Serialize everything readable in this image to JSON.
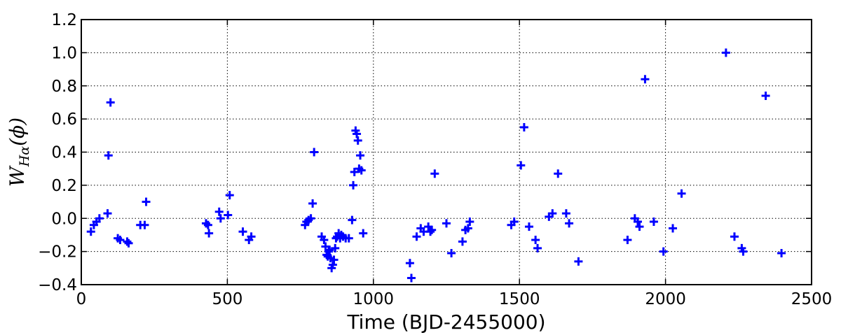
{
  "chart_data": {
    "type": "scatter",
    "title": "",
    "xlabel": "Time (BJD-2455000)",
    "ylabel": {
      "main": "W",
      "subscript": "Hα",
      "suffix": "(ϕ)"
    },
    "xlim": [
      0,
      2500
    ],
    "ylim": [
      -0.4,
      1.2
    ],
    "xticks": [
      0,
      500,
      1000,
      1500,
      2000,
      2500
    ],
    "xtick_labels": [
      "0",
      "500",
      "1000",
      "1500",
      "2000",
      "2500"
    ],
    "yticks": [
      -0.4,
      -0.2,
      0.0,
      0.2,
      0.4,
      0.6,
      0.8,
      1.0,
      1.2
    ],
    "ytick_labels": [
      "−0.4",
      "−0.2",
      "0.0",
      "0.2",
      "0.4",
      "0.6",
      "0.8",
      "1.0",
      "1.2"
    ],
    "grid": true,
    "marker": "plus",
    "color": "#0000ff",
    "series": [
      {
        "x": [
          33,
          43,
          52,
          62,
          90,
          93,
          100,
          125,
          133,
          157,
          162,
          202,
          217,
          222,
          427,
          434,
          437,
          472,
          477,
          502,
          508,
          553,
          574,
          582,
          766,
          771,
          778,
          786,
          792,
          797,
          823,
          831,
          836,
          840,
          844,
          847,
          850,
          853,
          857,
          861,
          865,
          869,
          872,
          876,
          881,
          886,
          890,
          896,
          905,
          916,
          927,
          931,
          935,
          939,
          943,
          947,
          951,
          955,
          959,
          965,
          1125,
          1130,
          1148,
          1162,
          1172,
          1188,
          1195,
          1200,
          1210,
          1250,
          1267,
          1305,
          1315,
          1324,
          1330,
          1472,
          1482,
          1505,
          1516,
          1533,
          1555,
          1562,
          1601,
          1613,
          1632,
          1660,
          1670,
          1702,
          1870,
          1895,
          1905,
          1911,
          1930,
          1960,
          1993,
          2025,
          2055,
          2207,
          2236,
          2261,
          2266,
          2343,
          2397
        ],
        "y": [
          -0.08,
          -0.04,
          -0.02,
          0.0,
          0.03,
          0.38,
          0.7,
          -0.12,
          -0.13,
          -0.14,
          -0.15,
          -0.04,
          -0.04,
          0.1,
          -0.03,
          -0.04,
          -0.09,
          0.04,
          0.0,
          0.02,
          0.14,
          -0.08,
          -0.13,
          -0.11,
          -0.04,
          -0.02,
          -0.01,
          0.0,
          0.09,
          0.4,
          -0.11,
          -0.13,
          -0.17,
          -0.22,
          -0.23,
          -0.2,
          -0.19,
          -0.24,
          -0.3,
          -0.28,
          -0.25,
          -0.18,
          -0.12,
          -0.11,
          -0.09,
          -0.12,
          -0.1,
          -0.11,
          -0.12,
          -0.12,
          -0.01,
          0.2,
          0.28,
          0.53,
          0.51,
          0.47,
          0.3,
          0.38,
          0.29,
          -0.09,
          -0.27,
          -0.36,
          -0.11,
          -0.06,
          -0.08,
          -0.05,
          -0.08,
          -0.07,
          0.27,
          -0.03,
          -0.21,
          -0.14,
          -0.07,
          -0.06,
          -0.02,
          -0.04,
          -0.02,
          0.32,
          0.55,
          -0.05,
          -0.13,
          -0.18,
          0.01,
          0.03,
          0.27,
          0.03,
          -0.03,
          -0.26,
          -0.13,
          0.0,
          -0.02,
          -0.05,
          0.84,
          -0.02,
          -0.2,
          -0.06,
          0.15,
          1.0,
          -0.11,
          -0.18,
          -0.2,
          0.74,
          -0.21
        ]
      }
    ]
  }
}
